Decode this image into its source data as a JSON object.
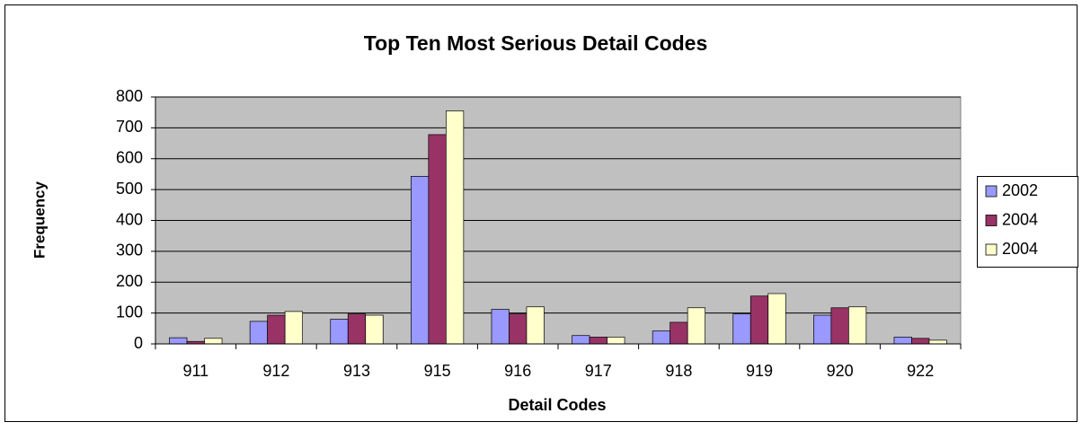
{
  "chart_data": {
    "type": "bar",
    "title": "Top Ten Most Serious Detail Codes",
    "x_label": "Detail Codes",
    "y_label": "Frequency",
    "categories": [
      "911",
      "912",
      "913",
      "915",
      "916",
      "917",
      "918",
      "919",
      "920",
      "922"
    ],
    "series": [
      {
        "name": "2002",
        "color": "#9999ff",
        "values": [
          20,
          73,
          80,
          543,
          112,
          27,
          42,
          97,
          93,
          22
        ]
      },
      {
        "name": "2004",
        "color": "#993366",
        "values": [
          8,
          93,
          97,
          678,
          97,
          22,
          70,
          155,
          117,
          18
        ]
      },
      {
        "name": "2004",
        "color": "#ffffcc",
        "values": [
          18,
          105,
          93,
          755,
          120,
          22,
          117,
          163,
          120,
          12
        ]
      }
    ],
    "ylim": [
      0,
      800
    ],
    "yticks": [
      0,
      100,
      200,
      300,
      400,
      500,
      600,
      700,
      800
    ],
    "grid": true,
    "legend": "right"
  }
}
